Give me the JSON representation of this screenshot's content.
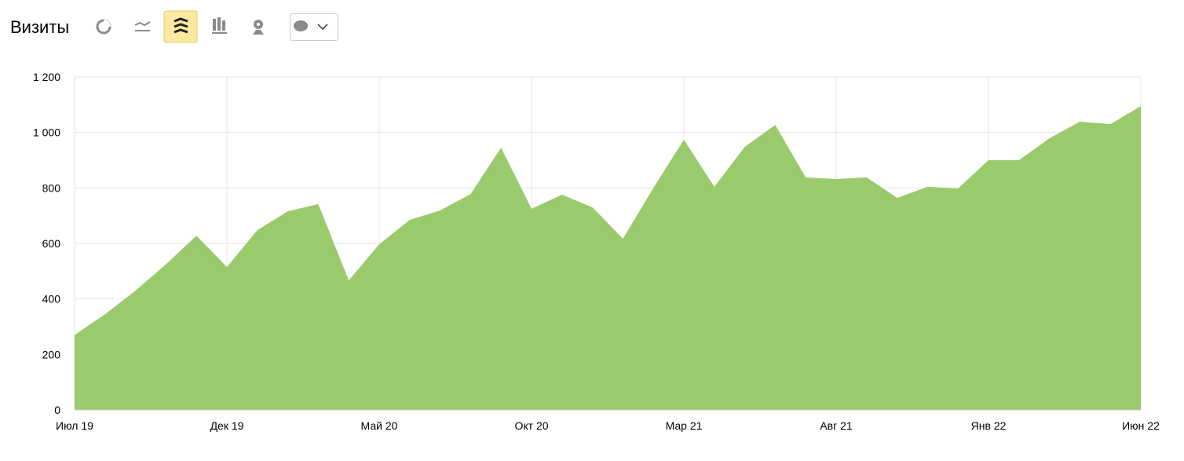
{
  "chart_data": {
    "type": "area",
    "title": "Визиты",
    "categories": [
      "Июл 19",
      null,
      null,
      null,
      null,
      "Дек 19",
      null,
      null,
      null,
      null,
      "Май 20",
      null,
      null,
      null,
      null,
      "Окт 20",
      null,
      null,
      null,
      null,
      "Мар 21",
      null,
      null,
      null,
      null,
      "Авг 21",
      null,
      null,
      null,
      null,
      "Янв 22",
      null,
      null,
      null,
      null,
      "Июн 22"
    ],
    "values": [
      270,
      345,
      430,
      525,
      628,
      515,
      648,
      716,
      742,
      467,
      597,
      685,
      719,
      778,
      945,
      725,
      776,
      730,
      617,
      800,
      974,
      804,
      948,
      1027,
      838,
      832,
      838,
      764,
      804,
      798,
      900,
      900,
      979,
      1039,
      1030,
      1095
    ],
    "color": "#96c866",
    "ylim": [
      0,
      1200
    ],
    "yticks": [
      0,
      200,
      400,
      600,
      800,
      {
        "value": 1000,
        "label": "1 000"
      },
      {
        "value": 1200,
        "label": "1 200"
      }
    ],
    "grid": true
  }
}
